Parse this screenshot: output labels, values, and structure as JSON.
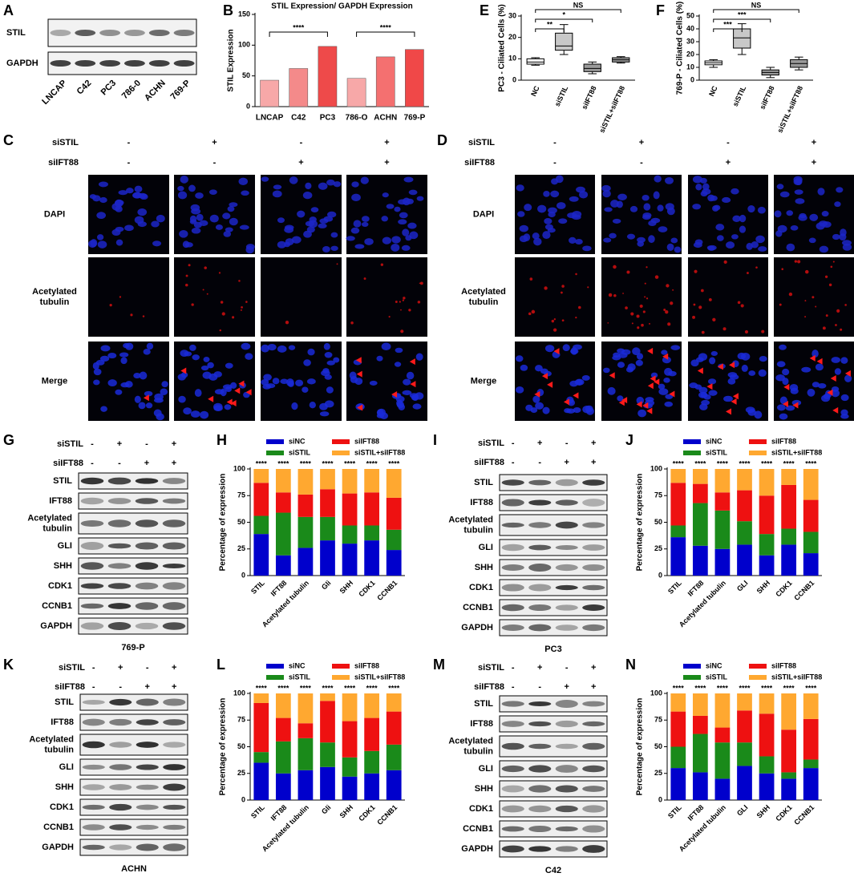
{
  "figure": {
    "A": {
      "label": "A",
      "rows": [
        "STIL",
        "GAPDH"
      ],
      "lanes": [
        "LNCAP",
        "C42",
        "PC3",
        "786-0",
        "ACHN",
        "769-P"
      ]
    },
    "C": {
      "label": "C",
      "treatments": [
        {
          "name": "siSTIL",
          "signs": [
            "-",
            "+",
            "-",
            "+"
          ]
        },
        {
          "name": "siIFT88",
          "signs": [
            "-",
            "-",
            "+",
            "+"
          ]
        }
      ],
      "stains": [
        [
          "DAPI"
        ],
        [
          "Acetylated",
          "tubulin"
        ],
        [
          "Merge"
        ]
      ]
    },
    "D": {
      "label": "D",
      "treatments": [
        {
          "name": "siSTIL",
          "signs": [
            "-",
            "+",
            "-",
            "+"
          ]
        },
        {
          "name": "siIFT88",
          "signs": [
            "-",
            "-",
            "+",
            "+"
          ]
        }
      ],
      "stains": [
        [
          "DAPI"
        ],
        [
          "Acetylated",
          "tubulin"
        ],
        [
          "Merge"
        ]
      ]
    },
    "G": {
      "label": "G",
      "treatments": [
        {
          "name": "siSTIL",
          "signs": [
            "-",
            "+",
            "-",
            "+"
          ]
        },
        {
          "name": "siIFT88",
          "signs": [
            "-",
            "-",
            "+",
            "+"
          ]
        }
      ],
      "rows": [
        [
          "STIL"
        ],
        [
          "IFT88"
        ],
        [
          "Acetylated",
          "tubulin"
        ],
        [
          "GLI"
        ],
        [
          "SHH"
        ],
        [
          "CDK1"
        ],
        [
          "CCNB1"
        ],
        [
          "GAPDH"
        ]
      ],
      "cell_line": "769-P"
    },
    "I": {
      "label": "I",
      "treatments": [
        {
          "name": "siSTIL",
          "signs": [
            "-",
            "+",
            "-",
            "+"
          ]
        },
        {
          "name": "siIFT88",
          "signs": [
            "-",
            "-",
            "+",
            "+"
          ]
        }
      ],
      "rows": [
        [
          "STIL"
        ],
        [
          "IFT88"
        ],
        [
          "Acetylated",
          "tubulin"
        ],
        [
          "GLI"
        ],
        [
          "SHH"
        ],
        [
          "CDK1"
        ],
        [
          "CCNB1"
        ],
        [
          "GAPDH"
        ]
      ],
      "cell_line": "PC3"
    },
    "K": {
      "label": "K",
      "treatments": [
        {
          "name": "siSTIL",
          "signs": [
            "-",
            "+",
            "-",
            "+"
          ]
        },
        {
          "name": "siIFT88",
          "signs": [
            "-",
            "-",
            "+",
            "+"
          ]
        }
      ],
      "rows": [
        [
          "STIL"
        ],
        [
          "IFT88"
        ],
        [
          "Acetylated",
          "tubulin"
        ],
        [
          "GLI"
        ],
        [
          "SHH"
        ],
        [
          "CDK1"
        ],
        [
          "CCNB1"
        ],
        [
          "GAPDH"
        ]
      ],
      "cell_line": "ACHN"
    },
    "M": {
      "label": "M",
      "treatments": [
        {
          "name": "siSTIL",
          "signs": [
            "-",
            "+",
            "-",
            "+"
          ]
        },
        {
          "name": "siIFT88",
          "signs": [
            "-",
            "-",
            "+",
            "+"
          ]
        }
      ],
      "rows": [
        [
          "STIL"
        ],
        [
          "IFT88"
        ],
        [
          "Acetylated",
          "tubulin"
        ],
        [
          "GLI"
        ],
        [
          "SHH"
        ],
        [
          "CDK1"
        ],
        [
          "CCNB1"
        ],
        [
          "GAPDH"
        ]
      ],
      "cell_line": "C42"
    }
  },
  "chart_data": [
    {
      "type": "bar",
      "label": "B",
      "title": "STIL Expression/ GAPDH Expression",
      "y_label": "STIL Expression",
      "categories": [
        "LNCAP",
        "C42",
        "PC3",
        "786-O",
        "ACHN",
        "769-P"
      ],
      "values": [
        43,
        62,
        98,
        46,
        81,
        93
      ],
      "colors": [
        "#f7a8a8",
        "#f48a8a",
        "#ee4a4a",
        "#f7a8a8",
        "#f47070",
        "#f04848"
      ],
      "ylim": [
        0,
        150
      ],
      "yticks": [
        0,
        50,
        100,
        150
      ],
      "annotations": [
        "****",
        "****"
      ]
    },
    {
      "type": "box",
      "label": "E",
      "y_label": "PC3 - Ciliated Cells (%)",
      "categories": [
        "NC",
        "siSTIL",
        "siIFT88",
        "siSTIL+siIFT88"
      ],
      "boxes": [
        {
          "min": 7,
          "q1": 7.5,
          "median": 8.5,
          "q3": 10,
          "max": 10.5,
          "color": "#ffffff"
        },
        {
          "min": 12,
          "q1": 14,
          "median": 16,
          "q3": 22,
          "max": 26,
          "color": "#c8c8c8"
        },
        {
          "min": 3,
          "q1": 4,
          "median": 5.5,
          "q3": 7.5,
          "max": 8.5,
          "color": "#9a9a9a"
        },
        {
          "min": 8,
          "q1": 8.5,
          "median": 9.5,
          "q3": 10.5,
          "max": 11,
          "color": "#9a9a9a"
        }
      ],
      "ylim": [
        0,
        30
      ],
      "yticks": [
        0,
        10,
        20,
        30
      ],
      "annotations": [
        "**",
        "*",
        "NS"
      ]
    },
    {
      "type": "box",
      "label": "F",
      "y_label": "769-P - Ciliated Cells (%)",
      "categories": [
        "NC",
        "siSTIL",
        "siIFT88",
        "siSTIL+siIFT88"
      ],
      "boxes": [
        {
          "min": 10,
          "q1": 12,
          "median": 13.5,
          "q3": 15,
          "max": 16,
          "color": "#ffffff"
        },
        {
          "min": 20,
          "q1": 25,
          "median": 33,
          "q3": 40,
          "max": 44,
          "color": "#c8c8c8"
        },
        {
          "min": 2,
          "q1": 4,
          "median": 6,
          "q3": 8,
          "max": 10,
          "color": "#9a9a9a"
        },
        {
          "min": 8,
          "q1": 10,
          "median": 13,
          "q3": 16,
          "max": 18,
          "color": "#9a9a9a"
        }
      ],
      "ylim": [
        0,
        50
      ],
      "yticks": [
        0,
        10,
        20,
        30,
        40,
        50
      ],
      "annotations": [
        "***",
        "***",
        "NS"
      ]
    },
    {
      "type": "stacked_bar",
      "label": "H",
      "y_label": "Percentage of expression",
      "categories": [
        "STIL",
        "IFT88",
        "Acetylated tubulin",
        "Gli",
        "SHH",
        "CDK1",
        "CCNB1"
      ],
      "series": [
        {
          "name": "siNC",
          "color": "#0000cc",
          "values": [
            39,
            19,
            26,
            33,
            30,
            33,
            24
          ]
        },
        {
          "name": "siSTIL",
          "color": "#1a8a1a",
          "values": [
            17,
            40,
            29,
            22,
            17,
            14,
            19
          ]
        },
        {
          "name": "siIFT88",
          "color": "#ee1111",
          "values": [
            31,
            19,
            21,
            26,
            30,
            31,
            30
          ]
        },
        {
          "name": "siSTIL+siIFT88",
          "color": "#ffa830",
          "values": [
            13,
            22,
            24,
            19,
            23,
            22,
            27
          ]
        }
      ],
      "ylim": [
        0,
        100
      ],
      "yticks": [
        0,
        25,
        50,
        75,
        100
      ],
      "annotations": [
        "****",
        "****",
        "****",
        "****",
        "****",
        "****",
        "****"
      ]
    },
    {
      "type": "stacked_bar",
      "label": "J",
      "y_label": "Percentage of expression",
      "categories": [
        "STIL",
        "IFT88",
        "Acetylated tubulin",
        "GLI",
        "SHH",
        "CDK1",
        "CCNB1"
      ],
      "series": [
        {
          "name": "siNC",
          "color": "#0000cc",
          "values": [
            36,
            28,
            25,
            29,
            19,
            29,
            21
          ]
        },
        {
          "name": "siSTIL",
          "color": "#1a8a1a",
          "values": [
            11,
            40,
            36,
            22,
            20,
            15,
            20
          ]
        },
        {
          "name": "siIFT88",
          "color": "#ee1111",
          "values": [
            40,
            18,
            17,
            29,
            36,
            41,
            30
          ]
        },
        {
          "name": "siSTIL+siIFT88",
          "color": "#ffa830",
          "values": [
            13,
            14,
            22,
            20,
            25,
            15,
            29
          ]
        }
      ],
      "ylim": [
        0,
        100
      ],
      "yticks": [
        0,
        25,
        50,
        75,
        100
      ],
      "annotations": [
        "****",
        "****",
        "****",
        "****",
        "****",
        "****",
        "****"
      ]
    },
    {
      "type": "stacked_bar",
      "label": "L",
      "y_label": "Percentage of expression",
      "categories": [
        "STIL",
        "IFT88",
        "Acetylated tubulin",
        "Gli",
        "SHH",
        "CDK1",
        "CCNB1"
      ],
      "series": [
        {
          "name": "siNC",
          "color": "#0000cc",
          "values": [
            35,
            25,
            28,
            31,
            22,
            25,
            28
          ]
        },
        {
          "name": "siSTIL",
          "color": "#1a8a1a",
          "values": [
            10,
            30,
            30,
            23,
            18,
            21,
            24
          ]
        },
        {
          "name": "siIFT88",
          "color": "#ee1111",
          "values": [
            46,
            22,
            14,
            39,
            34,
            31,
            31
          ]
        },
        {
          "name": "siSTIL+siIFT88",
          "color": "#ffa830",
          "values": [
            9,
            23,
            28,
            7,
            26,
            23,
            17
          ]
        }
      ],
      "ylim": [
        0,
        100
      ],
      "yticks": [
        0,
        25,
        50,
        75,
        100
      ],
      "annotations": [
        "****",
        "****",
        "****",
        "****",
        "****",
        "****",
        "****"
      ]
    },
    {
      "type": "stacked_bar",
      "label": "N",
      "y_label": "Percentage of expression",
      "categories": [
        "STIL",
        "IFT88",
        "Acetylated tubulin",
        "GLI",
        "SHH",
        "CDK1",
        "CCNB1"
      ],
      "series": [
        {
          "name": "siNC",
          "color": "#0000cc",
          "values": [
            30,
            26,
            20,
            32,
            25,
            20,
            30
          ]
        },
        {
          "name": "siSTIL",
          "color": "#1a8a1a",
          "values": [
            20,
            36,
            34,
            22,
            16,
            6,
            8
          ]
        },
        {
          "name": "siIFT88",
          "color": "#ee1111",
          "values": [
            33,
            17,
            14,
            30,
            40,
            40,
            38
          ]
        },
        {
          "name": "siSTIL+siIFT88",
          "color": "#ffa830",
          "values": [
            17,
            21,
            32,
            16,
            19,
            34,
            24
          ]
        }
      ],
      "ylim": [
        0,
        100
      ],
      "yticks": [
        0,
        25,
        50,
        75,
        100
      ],
      "annotations": [
        "****",
        "****",
        "****",
        "****",
        "****",
        "****",
        "****"
      ]
    }
  ]
}
